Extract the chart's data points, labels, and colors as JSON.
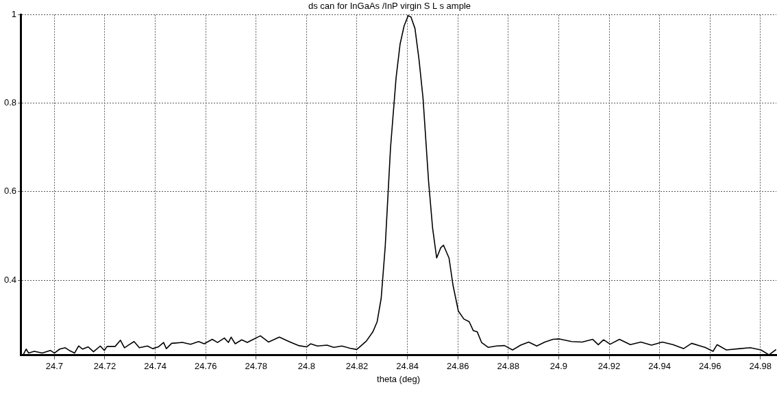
{
  "chart_data": {
    "type": "line",
    "title": "ds can for InGaAs /InP virgin S L s ample",
    "xlabel": "theta (deg)",
    "xlim": [
      24.6866,
      24.9863
    ],
    "xticks": [
      24.7,
      24.72,
      24.74,
      24.76,
      24.78,
      24.8,
      24.82,
      24.84,
      24.86,
      24.88,
      24.9,
      24.92,
      24.94,
      24.96,
      24.98
    ],
    "ylim": [
      0.23,
      1
    ],
    "yticks": [
      0.4,
      0.6,
      0.8,
      1
    ],
    "grid": true,
    "legend": false,
    "marker": "none",
    "line_style": "solid",
    "series": [
      {
        "color": "#000000",
        "x": [
          24.6877,
          24.6888,
          24.6898,
          24.692,
          24.6952,
          24.6984,
          24.7,
          24.7021,
          24.7043,
          24.7059,
          24.708,
          24.7096,
          24.7112,
          24.7134,
          24.7155,
          24.7182,
          24.7198,
          24.7209,
          24.7241,
          24.7262,
          24.7278,
          24.7294,
          24.7316,
          24.7337,
          24.7369,
          24.739,
          24.7412,
          24.7433,
          24.7444,
          24.7465,
          24.7508,
          24.754,
          24.7572,
          24.7594,
          24.7626,
          24.7647,
          24.7674,
          24.769,
          24.7701,
          24.7717,
          24.7743,
          24.7765,
          24.7785,
          24.7817,
          24.7849,
          24.7892,
          24.7935,
          24.7968,
          24.8,
          24.8016,
          24.8043,
          24.8081,
          24.8108,
          24.814,
          24.8172,
          24.8199,
          24.8237,
          24.8263,
          24.828,
          24.8296,
          24.8312,
          24.8333,
          24.8355,
          24.8371,
          24.8387,
          24.8403,
          24.8414,
          24.843,
          24.8446,
          24.8462,
          24.8484,
          24.85,
          24.8516,
          24.8532,
          24.8543,
          24.8565,
          24.8581,
          24.8602,
          24.8624,
          24.8645,
          24.8661,
          24.8677,
          24.8694,
          24.872,
          24.8753,
          24.8785,
          24.8817,
          24.8849,
          24.8881,
          24.8913,
          24.8945,
          24.8977,
          24.9003,
          24.9051,
          24.9093,
          24.9135,
          24.9157,
          24.9178,
          24.9204,
          24.9241,
          24.9284,
          24.9326,
          24.9368,
          24.9411,
          24.9453,
          24.9495,
          24.9527,
          24.958,
          24.9612,
          24.9628,
          24.9665,
          24.9717,
          24.976,
          24.9802,
          24.9834,
          24.9862
        ],
        "values": [
          0.232,
          0.244,
          0.235,
          0.239,
          0.235,
          0.241,
          0.235,
          0.244,
          0.247,
          0.241,
          0.235,
          0.251,
          0.244,
          0.249,
          0.238,
          0.251,
          0.241,
          0.25,
          0.25,
          0.264,
          0.247,
          0.253,
          0.261,
          0.247,
          0.251,
          0.245,
          0.249,
          0.259,
          0.245,
          0.257,
          0.259,
          0.255,
          0.261,
          0.256,
          0.266,
          0.259,
          0.269,
          0.259,
          0.271,
          0.256,
          0.265,
          0.259,
          0.265,
          0.274,
          0.26,
          0.271,
          0.26,
          0.252,
          0.249,
          0.256,
          0.251,
          0.253,
          0.248,
          0.251,
          0.246,
          0.243,
          0.262,
          0.283,
          0.306,
          0.359,
          0.476,
          0.699,
          0.857,
          0.934,
          0.975,
          0.998,
          0.995,
          0.969,
          0.899,
          0.811,
          0.623,
          0.517,
          0.45,
          0.473,
          0.479,
          0.45,
          0.388,
          0.33,
          0.312,
          0.306,
          0.286,
          0.283,
          0.259,
          0.248,
          0.251,
          0.252,
          0.242,
          0.253,
          0.26,
          0.251,
          0.26,
          0.266,
          0.267,
          0.261,
          0.26,
          0.266,
          0.254,
          0.265,
          0.255,
          0.266,
          0.254,
          0.26,
          0.253,
          0.26,
          0.254,
          0.245,
          0.257,
          0.248,
          0.239,
          0.254,
          0.242,
          0.245,
          0.247,
          0.242,
          0.231,
          0.243
        ]
      }
    ]
  }
}
